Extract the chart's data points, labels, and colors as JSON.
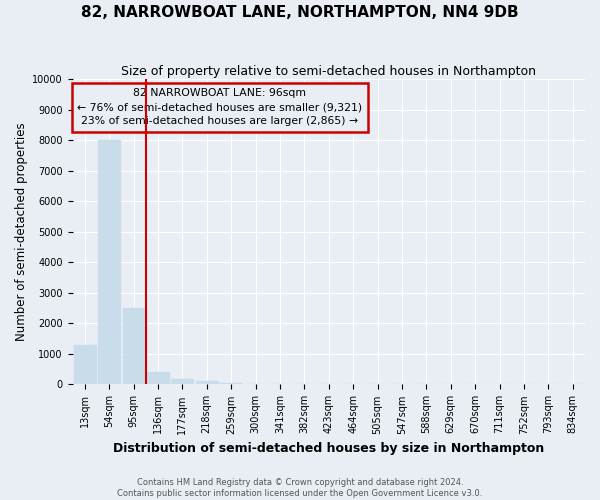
{
  "title": "82, NARROWBOAT LANE, NORTHAMPTON, NN4 9DB",
  "subtitle": "Size of property relative to semi-detached houses in Northampton",
  "xlabel": "Distribution of semi-detached houses by size in Northampton",
  "ylabel": "Number of semi-detached properties",
  "footnote1": "Contains HM Land Registry data © Crown copyright and database right 2024.",
  "footnote2": "Contains public sector information licensed under the Open Government Licence v3.0.",
  "categories": [
    "13sqm",
    "54sqm",
    "95sqm",
    "136sqm",
    "177sqm",
    "218sqm",
    "259sqm",
    "300sqm",
    "341sqm",
    "382sqm",
    "423sqm",
    "464sqm",
    "505sqm",
    "547sqm",
    "588sqm",
    "629sqm",
    "670sqm",
    "711sqm",
    "752sqm",
    "793sqm",
    "834sqm"
  ],
  "values": [
    1300,
    8000,
    2500,
    400,
    175,
    100,
    50,
    0,
    0,
    0,
    0,
    0,
    0,
    0,
    0,
    0,
    0,
    0,
    0,
    0,
    0
  ],
  "bar_color": "#c9dcea",
  "property_bar_index": 2,
  "property_label": "82 NARROWBOAT LANE: 96sqm",
  "annotation_line1": "← 76% of semi-detached houses are smaller (9,321)",
  "annotation_line2": "23% of semi-detached houses are larger (2,865) →",
  "box_color": "#cc0000",
  "ylim": [
    0,
    10000
  ],
  "yticks": [
    0,
    1000,
    2000,
    3000,
    4000,
    5000,
    6000,
    7000,
    8000,
    9000,
    10000
  ],
  "bg_color": "#e8eef4",
  "grid_color": "#ffffff",
  "title_fontsize": 11,
  "subtitle_fontsize": 9,
  "axis_label_fontsize": 8.5,
  "tick_fontsize": 7,
  "annotation_fontsize": 7.8,
  "footnote_fontsize": 6
}
